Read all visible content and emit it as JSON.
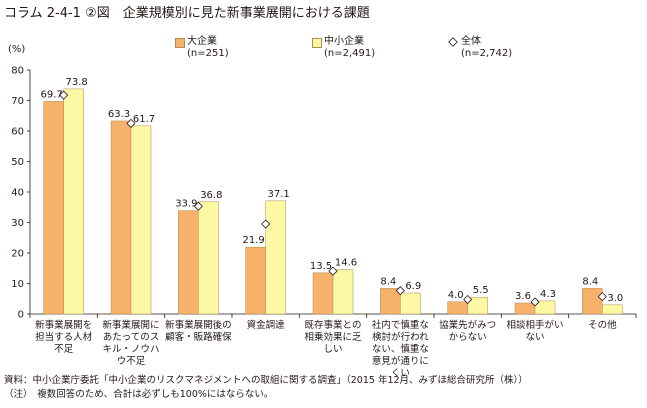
{
  "title": "コラム 2-4-1 ②図　企業規模別に見た新事業展開における課題",
  "unit_label": "(%)",
  "legend": [
    {
      "name": "大企業",
      "n": "(n=251)"
    },
    {
      "name": "中小企業",
      "n": "(n=2,491)"
    },
    {
      "name": "全体",
      "n": "(n=2,742)"
    }
  ],
  "colors": {
    "large": "#f6b26b",
    "sme": "#fdf8a3",
    "all_marker": "#ffffff",
    "axis": "#231815",
    "bar_edge": "#b08b53"
  },
  "chart_data": {
    "type": "bar",
    "ylabel": "(%)",
    "ylim": [
      0,
      80
    ],
    "yticks": [
      0,
      10,
      20,
      30,
      40,
      50,
      60,
      70,
      80
    ],
    "grid": false,
    "legend_position": "top",
    "categories": [
      [
        "新事業展開を",
        "担当する人材",
        "不足"
      ],
      [
        "新事業展開に",
        "あたってのス",
        "キル・ノウハ",
        "ウ不足"
      ],
      [
        "新事業展開後の",
        "顧客・販路確保"
      ],
      [
        "資金調達"
      ],
      [
        "既存事業との",
        "相乗効果に乏",
        "しい"
      ],
      [
        "社内で慎重な",
        "検討が行われ",
        "ない、慎重な",
        "意見が通りに",
        "くい"
      ],
      [
        "協業先がみつ",
        "からない"
      ],
      [
        "相談相手がい",
        "ない"
      ],
      [
        "その他"
      ]
    ],
    "series": [
      {
        "name": "大企業",
        "values": [
          69.7,
          63.3,
          33.9,
          21.9,
          13.5,
          8.4,
          4.0,
          3.6,
          8.4
        ],
        "labels": [
          "69.7",
          "63.3",
          "33.9",
          "21.9",
          "13.5",
          "8.4",
          "4.0",
          "3.6",
          "8.4"
        ]
      },
      {
        "name": "中小企業",
        "values": [
          73.8,
          61.7,
          36.8,
          37.1,
          14.6,
          6.9,
          5.5,
          4.3,
          3.0
        ],
        "labels": [
          "73.8",
          "61.7",
          "36.8",
          "37.1",
          "14.6",
          "6.9",
          "5.5",
          "4.3",
          "3.0"
        ]
      },
      {
        "name": "全体",
        "type": "marker"
      }
    ]
  },
  "footnotes": [
    "資料：中小企業庁委託「中小企業のリスクマネジメントへの取組に関する調査」（2015 年12月、みずほ総合研究所（株））",
    "（注）　複数回答のため、合計は必ずしも100%にはならない。"
  ]
}
